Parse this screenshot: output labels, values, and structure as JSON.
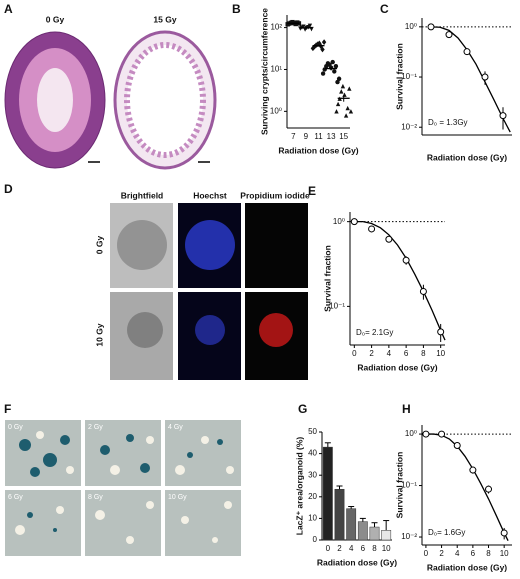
{
  "panel_a": {
    "letter": "A",
    "labels": [
      "0 Gy",
      "15 Gy"
    ]
  },
  "panel_d": {
    "letter": "D",
    "columns": [
      "Brightfield",
      "Hoechst",
      "Propidium iodide"
    ],
    "rows": [
      "0 Gy",
      "10 Gy"
    ]
  },
  "panel_f": {
    "letter": "F",
    "labels": [
      "0 Gy",
      "2 Gy",
      "4 Gy",
      "6 Gy",
      "8 Gy",
      "10 Gy"
    ]
  },
  "chart_data": [
    {
      "type": "dot",
      "panel": "B",
      "xlabel": "Radiation dose (Gy)",
      "ylabel": "Surviving crypts/circumference",
      "categories": [
        "7",
        "9",
        "11",
        "13",
        "15"
      ],
      "log": true,
      "ylim": [
        0.4,
        200
      ],
      "yticks": [
        {
          "value": 1,
          "label": "10⁰"
        },
        {
          "value": 10,
          "label": "10¹"
        },
        {
          "value": 100,
          "label": "10²"
        }
      ],
      "markers": [
        "square",
        "triangle-down",
        "diamond",
        "circle",
        "triangle"
      ],
      "color": "#111111",
      "points": [
        [
          120,
          125,
          130,
          135,
          128,
          122,
          132,
          126
        ],
        [
          95,
          100,
          105,
          90,
          98,
          102,
          110,
          92
        ],
        [
          32,
          35,
          38,
          40,
          42,
          36,
          30,
          45
        ],
        [
          8,
          10,
          12,
          14,
          13,
          11,
          15,
          9,
          12,
          5,
          6
        ],
        [
          1,
          1.5,
          2,
          3,
          4,
          2.5,
          0.8,
          1.2,
          3.5,
          1
        ]
      ],
      "means": [
        127,
        99,
        37,
        10.5,
        2.05
      ],
      "errors": [
        2,
        2.5,
        1.8,
        1,
        0.35
      ]
    },
    {
      "type": "scatter",
      "panel": "C",
      "xlabel": "Radiation dose (Gy)",
      "ylabel": "Survival fraction",
      "x": [
        7,
        9,
        11,
        13,
        15
      ],
      "values": [
        1,
        0.7,
        0.32,
        0.1,
        0.017
      ],
      "errors": [
        0.02,
        0.05,
        0.03,
        0.03,
        0.008
      ],
      "fit": {
        "x": [
          7,
          8,
          9,
          10,
          11,
          12,
          13,
          14,
          15,
          15.8
        ],
        "values": [
          1,
          0.98,
          0.85,
          0.6,
          0.35,
          0.18,
          0.08,
          0.035,
          0.015,
          0.008
        ]
      },
      "xlim": [
        6,
        16
      ],
      "log": true,
      "ylim": [
        0.007,
        1.5
      ],
      "yticks": [
        {
          "value": 0.01,
          "label": "10⁻²"
        },
        {
          "value": 0.1,
          "label": "10⁻¹"
        },
        {
          "value": 1,
          "label": "10⁰"
        }
      ],
      "reference_line": 1,
      "annotation": "D₀ = 1.3Gy"
    },
    {
      "type": "scatter",
      "panel": "E",
      "xlabel": "Radiation dose (Gy)",
      "ylabel": "Survival fraction",
      "x": [
        0,
        2,
        4,
        6,
        8,
        10
      ],
      "values": [
        1,
        0.82,
        0.62,
        0.35,
        0.15,
        0.05
      ],
      "errors": [
        0.02,
        0.06,
        0.05,
        0.04,
        0.03,
        0.012
      ],
      "fit": {
        "x": [
          0,
          1,
          2,
          3,
          4,
          5,
          6,
          7,
          8,
          9,
          10,
          10.5
        ],
        "values": [
          1,
          1,
          0.95,
          0.85,
          0.7,
          0.53,
          0.37,
          0.24,
          0.15,
          0.09,
          0.052,
          0.04
        ]
      },
      "xlim": [
        -0.5,
        10.5
      ],
      "xticks": [
        0,
        2,
        4,
        6,
        8,
        10
      ],
      "log": true,
      "ylim": [
        0.035,
        1.3
      ],
      "yticks": [
        {
          "value": 0.1,
          "label": "10⁻¹"
        },
        {
          "value": 1,
          "label": "10⁰"
        }
      ],
      "reference_line": 1,
      "annotation": "D₀= 2.1Gy"
    },
    {
      "type": "bar",
      "panel": "G",
      "xlabel": "Radiation dose (Gy)",
      "ylabel": "LacZ⁺ area/organoid (%)",
      "categories": [
        "0",
        "2",
        "4",
        "6",
        "8",
        "10"
      ],
      "values": [
        43,
        23.5,
        14.5,
        8.5,
        6,
        4.5
      ],
      "errors": [
        2,
        1.5,
        1,
        1.5,
        2,
        4.5
      ],
      "colors": [
        "#222222",
        "#444444",
        "#666666",
        "#8c8c8c",
        "#b0b0b0",
        "#e8e8e8"
      ],
      "ylim": [
        0,
        50
      ],
      "yticks": [
        0,
        10,
        20,
        30,
        40,
        50
      ]
    },
    {
      "type": "scatter",
      "panel": "H",
      "xlabel": "Radiation dose (Gy)",
      "ylabel": "Survival fraction",
      "x": [
        0,
        2,
        4,
        6,
        8,
        10
      ],
      "values": [
        1,
        1,
        0.6,
        0.2,
        0.085,
        0.012
      ],
      "errors": [
        0.02,
        0.03,
        0.05,
        0.03,
        0.015,
        0.003
      ],
      "fit": {
        "x": [
          0,
          1,
          2,
          3,
          4,
          5,
          6,
          7,
          8,
          9,
          10,
          10.5
        ],
        "values": [
          1,
          1,
          0.95,
          0.8,
          0.58,
          0.37,
          0.21,
          0.11,
          0.055,
          0.026,
          0.012,
          0.0085
        ]
      },
      "xlim": [
        -0.5,
        11
      ],
      "xticks": [
        0,
        2,
        4,
        6,
        8,
        10
      ],
      "log": true,
      "ylim": [
        0.007,
        1.5
      ],
      "yticks": [
        {
          "value": 0.01,
          "label": "10⁻²"
        },
        {
          "value": 0.1,
          "label": "10⁻¹"
        },
        {
          "value": 1,
          "label": "10⁰"
        }
      ],
      "reference_line": 1,
      "annotation": "D₀= 1.6Gy"
    }
  ]
}
